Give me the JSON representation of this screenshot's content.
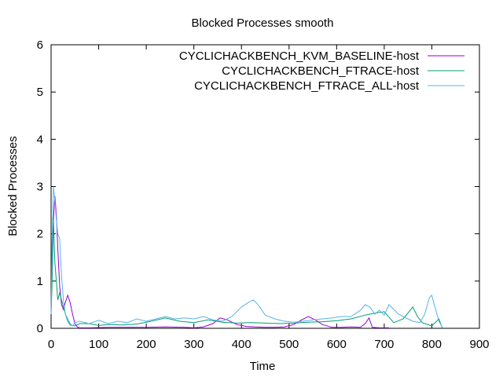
{
  "chart_data": {
    "type": "line",
    "title": "Blocked Processes smooth",
    "xlabel": "Time",
    "ylabel": "Blocked Processes",
    "xlim": [
      0,
      900
    ],
    "ylim": [
      0,
      6
    ],
    "xticks": [
      0,
      100,
      200,
      300,
      400,
      500,
      600,
      700,
      800,
      900
    ],
    "yticks": [
      0,
      1,
      2,
      3,
      4,
      5,
      6
    ],
    "grid": false,
    "legend_position": "top-right",
    "series": [
      {
        "name": "CYCLICHACKBENCH_KVM_BASELINE-host",
        "color": "#9400d3",
        "x": [
          0,
          2,
          5,
          8,
          11,
          14,
          18,
          22,
          26,
          30,
          35,
          40,
          45,
          50,
          55,
          60,
          80,
          120,
          160,
          200,
          240,
          280,
          300,
          320,
          340,
          355,
          370,
          390,
          410,
          430,
          450,
          470,
          490,
          510,
          525,
          540,
          555,
          570,
          590,
          610,
          630,
          650,
          660,
          668,
          675,
          690,
          710
        ],
        "y": [
          0.3,
          1.4,
          2.3,
          2.8,
          2.4,
          1.7,
          0.9,
          0.5,
          0.4,
          0.55,
          0.7,
          0.55,
          0.3,
          0.1,
          0.03,
          0.01,
          0.01,
          0.02,
          0.02,
          0.02,
          0.03,
          0.02,
          0.01,
          0.03,
          0.1,
          0.22,
          0.18,
          0.08,
          0.04,
          0.03,
          0.02,
          0.02,
          0.03,
          0.08,
          0.17,
          0.25,
          0.18,
          0.08,
          0.02,
          0.02,
          0.03,
          0.02,
          0.1,
          0.22,
          0.02,
          0.01,
          0.01
        ]
      },
      {
        "name": "CYCLICHACKBENCH_FTRACE-host",
        "color": "#009e73",
        "x": [
          0,
          2,
          5,
          8,
          11,
          14,
          18,
          22,
          26,
          30,
          35,
          40,
          50,
          60,
          80,
          100,
          120,
          150,
          180,
          210,
          240,
          270,
          300,
          330,
          360,
          390,
          420,
          450,
          480,
          510,
          540,
          570,
          600,
          630,
          660,
          680,
          700,
          720,
          740,
          760,
          770,
          780,
          800,
          815,
          822
        ],
        "y": [
          0.3,
          0.9,
          2.3,
          1.4,
          1.0,
          0.6,
          0.75,
          0.6,
          0.45,
          0.3,
          0.15,
          0.07,
          0.05,
          0.1,
          0.1,
          0.06,
          0.08,
          0.07,
          0.09,
          0.15,
          0.22,
          0.15,
          0.12,
          0.18,
          0.13,
          0.11,
          0.12,
          0.11,
          0.1,
          0.11,
          0.13,
          0.14,
          0.16,
          0.2,
          0.28,
          0.32,
          0.35,
          0.12,
          0.2,
          0.45,
          0.25,
          0.12,
          0.05,
          0.2,
          0.0
        ]
      },
      {
        "name": "CYCLICHACKBENCH_FTRACE_ALL-host",
        "color": "#56b4e9",
        "x": [
          0,
          2,
          5,
          8,
          11,
          14,
          18,
          22,
          26,
          30,
          35,
          40,
          45,
          50,
          60,
          80,
          100,
          120,
          140,
          160,
          180,
          200,
          220,
          240,
          260,
          280,
          300,
          320,
          340,
          360,
          380,
          400,
          415,
          425,
          435,
          450,
          470,
          490,
          510,
          530,
          550,
          570,
          590,
          610,
          630,
          650,
          660,
          670,
          680,
          690,
          700,
          710,
          720,
          730,
          740,
          760,
          775,
          785,
          795,
          800,
          805,
          815,
          822
        ],
        "y": [
          0.3,
          1.8,
          3.0,
          2.7,
          2.3,
          2.0,
          1.9,
          1.1,
          0.6,
          0.3,
          0.2,
          0.1,
          0.05,
          0.12,
          0.15,
          0.1,
          0.17,
          0.1,
          0.15,
          0.12,
          0.2,
          0.15,
          0.2,
          0.25,
          0.2,
          0.22,
          0.2,
          0.25,
          0.18,
          0.15,
          0.25,
          0.45,
          0.55,
          0.6,
          0.5,
          0.28,
          0.2,
          0.15,
          0.13,
          0.15,
          0.18,
          0.2,
          0.22,
          0.25,
          0.25,
          0.38,
          0.5,
          0.45,
          0.3,
          0.38,
          0.28,
          0.5,
          0.4,
          0.3,
          0.25,
          0.15,
          0.12,
          0.3,
          0.65,
          0.7,
          0.5,
          0.15,
          0.02
        ]
      }
    ]
  }
}
